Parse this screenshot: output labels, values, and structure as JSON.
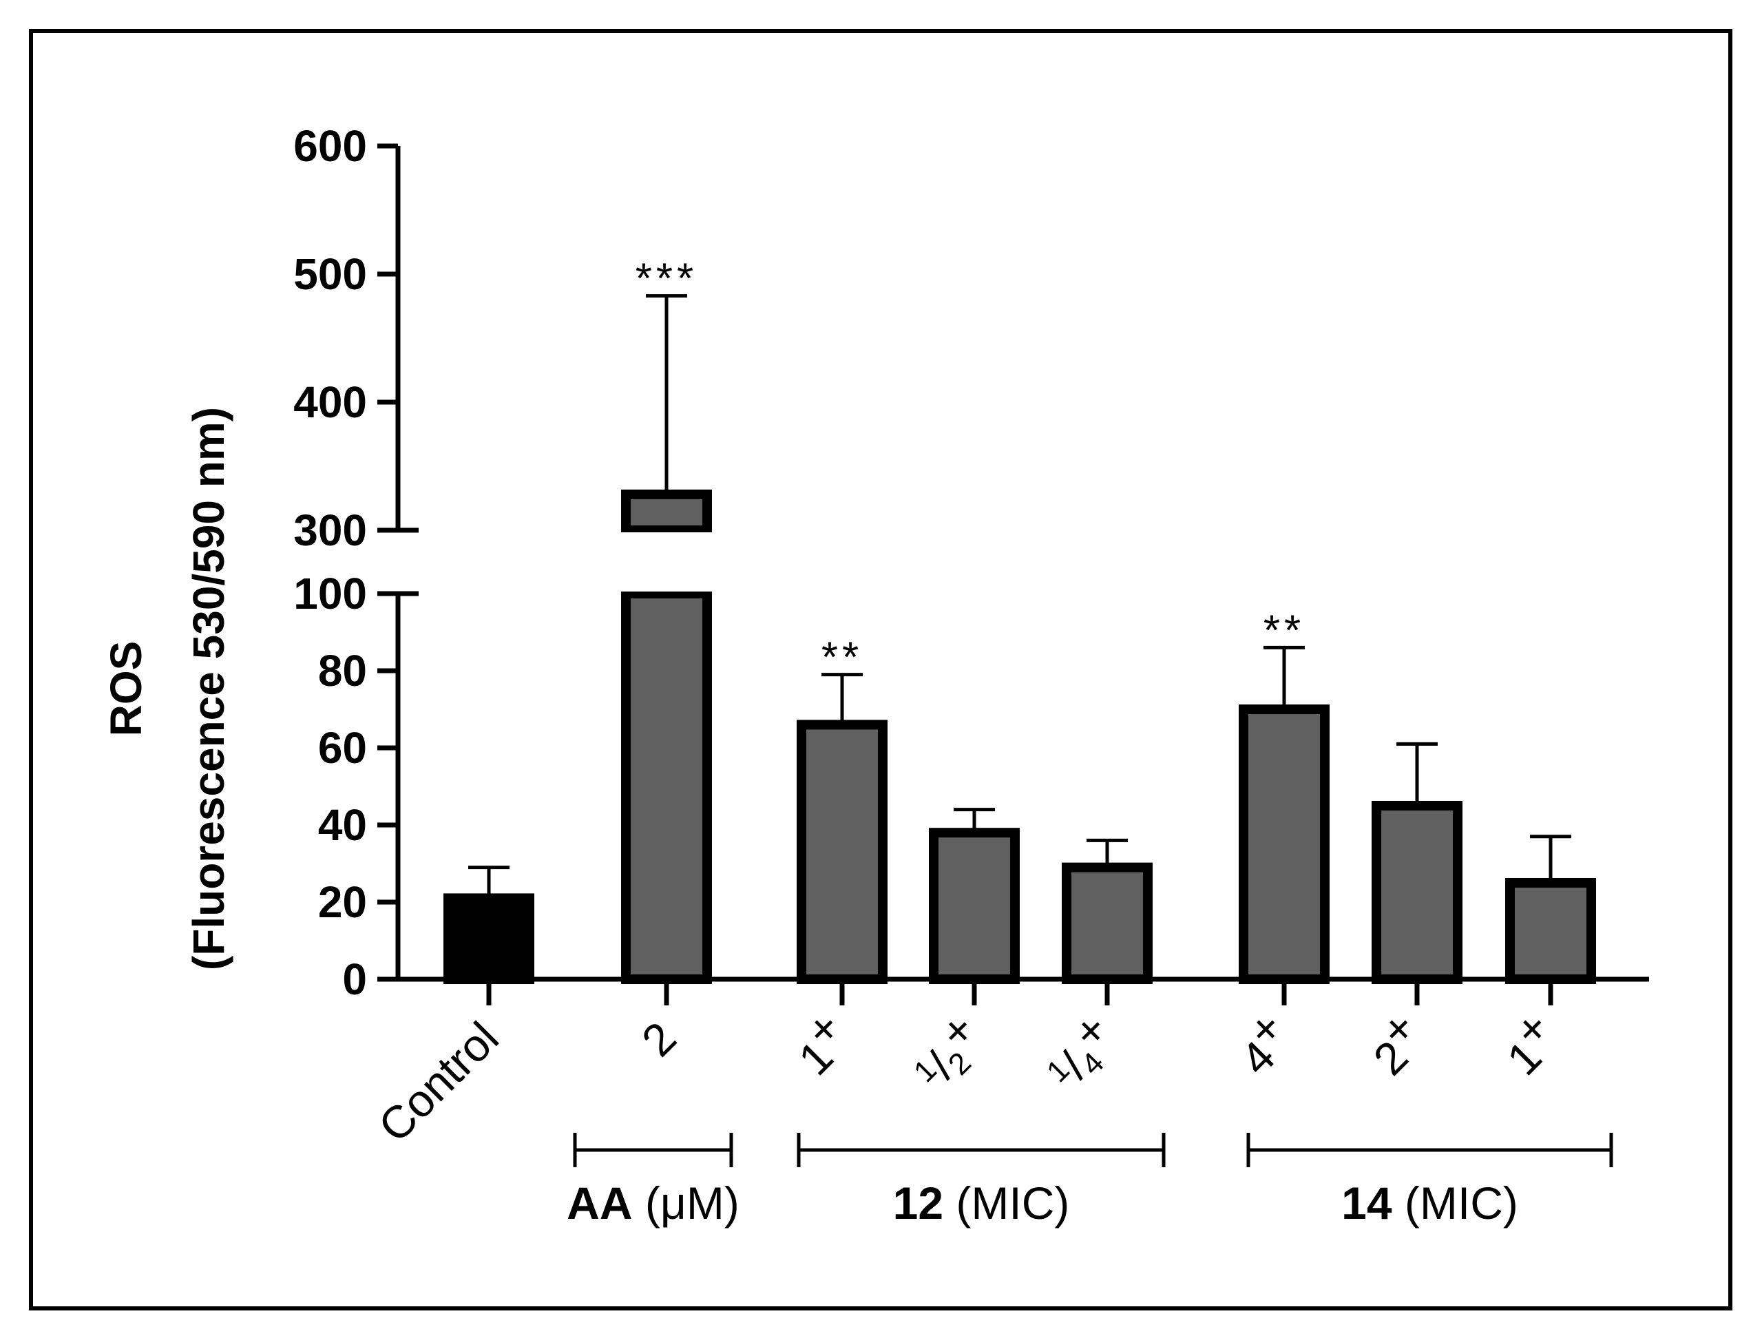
{
  "chart_data": {
    "type": "bar",
    "ylabel": "ROS",
    "ylabel_sub": "(Fluorescence 530/590 nm)",
    "axis_break": [
      100,
      300
    ],
    "ylim": [
      0,
      600
    ],
    "ticks_lower": [
      0,
      20,
      40,
      60,
      80,
      100
    ],
    "ticks_upper": [
      300,
      400,
      500,
      600
    ],
    "tick_labels_lower": [
      "0",
      "20",
      "40",
      "60",
      "80",
      "100"
    ],
    "tick_labels_upper": [
      "300",
      "400",
      "500",
      "600"
    ],
    "categories": [
      "Control",
      "2",
      "1",
      "1/2",
      "1/4",
      "4",
      "2",
      "1"
    ],
    "values": [
      21,
      328,
      66,
      38,
      29,
      70,
      45,
      25
    ],
    "errors": [
      8,
      155,
      13,
      6,
      7,
      16,
      16,
      12
    ],
    "significance": [
      "",
      "***",
      "**",
      "",
      "",
      "**",
      "",
      ""
    ],
    "plus_marks": [
      false,
      false,
      true,
      true,
      true,
      true,
      true,
      true
    ],
    "bar_colors": [
      "#000000",
      "#606060",
      "#606060",
      "#606060",
      "#606060",
      "#606060",
      "#606060",
      "#606060"
    ],
    "groups": [
      {
        "bold": "AA",
        "unit": "(μM)"
      },
      {
        "bold": "12",
        "unit": "(MIC)"
      },
      {
        "bold": "14",
        "unit": "(MIC)"
      }
    ],
    "grid": false,
    "legend": "none"
  }
}
